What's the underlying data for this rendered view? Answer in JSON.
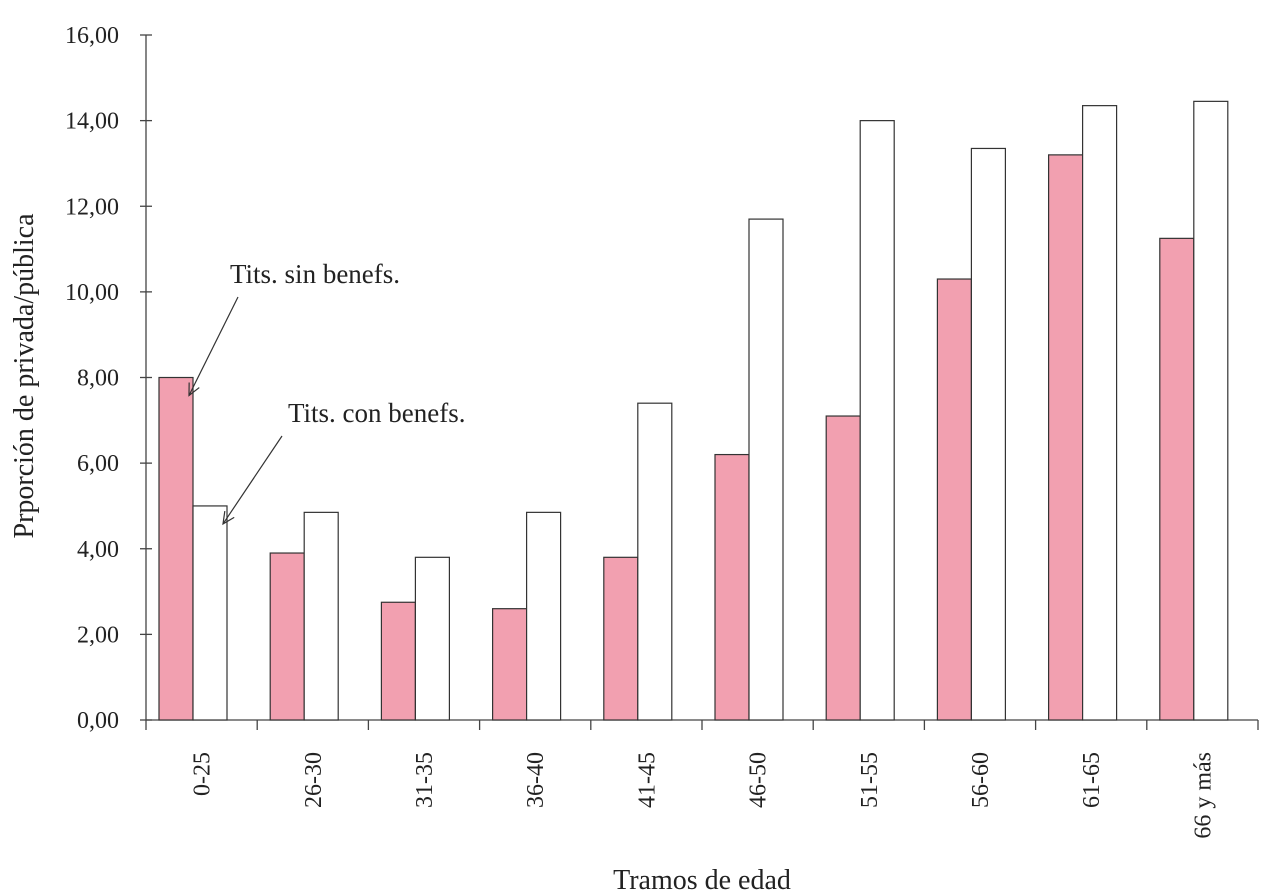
{
  "chart_data": {
    "type": "bar",
    "title": "",
    "xlabel": "Tramos de edad",
    "ylabel": "Prporción de privada/pública",
    "ylim": [
      0,
      16
    ],
    "yticks": [
      "0,00",
      "2,00",
      "4,00",
      "6,00",
      "8,00",
      "10,00",
      "12,00",
      "14,00",
      "16,00"
    ],
    "categories": [
      "0-25",
      "26-30",
      "31-35",
      "36-40",
      "41-45",
      "46-50",
      "51-55",
      "56-60",
      "61-65",
      "66 y más"
    ],
    "series": [
      {
        "name": "Tits. sin benefs.",
        "color": "#f2a0b0",
        "values": [
          8.0,
          3.9,
          2.75,
          2.6,
          3.8,
          6.2,
          7.1,
          10.3,
          13.2,
          11.25
        ]
      },
      {
        "name": "Tits. con benefs.",
        "color": "#ffffff",
        "values": [
          5.0,
          4.85,
          3.8,
          4.85,
          7.4,
          11.7,
          14.0,
          13.35,
          14.35,
          14.45
        ]
      }
    ],
    "grid": false,
    "legend": "annotations with arrows"
  }
}
